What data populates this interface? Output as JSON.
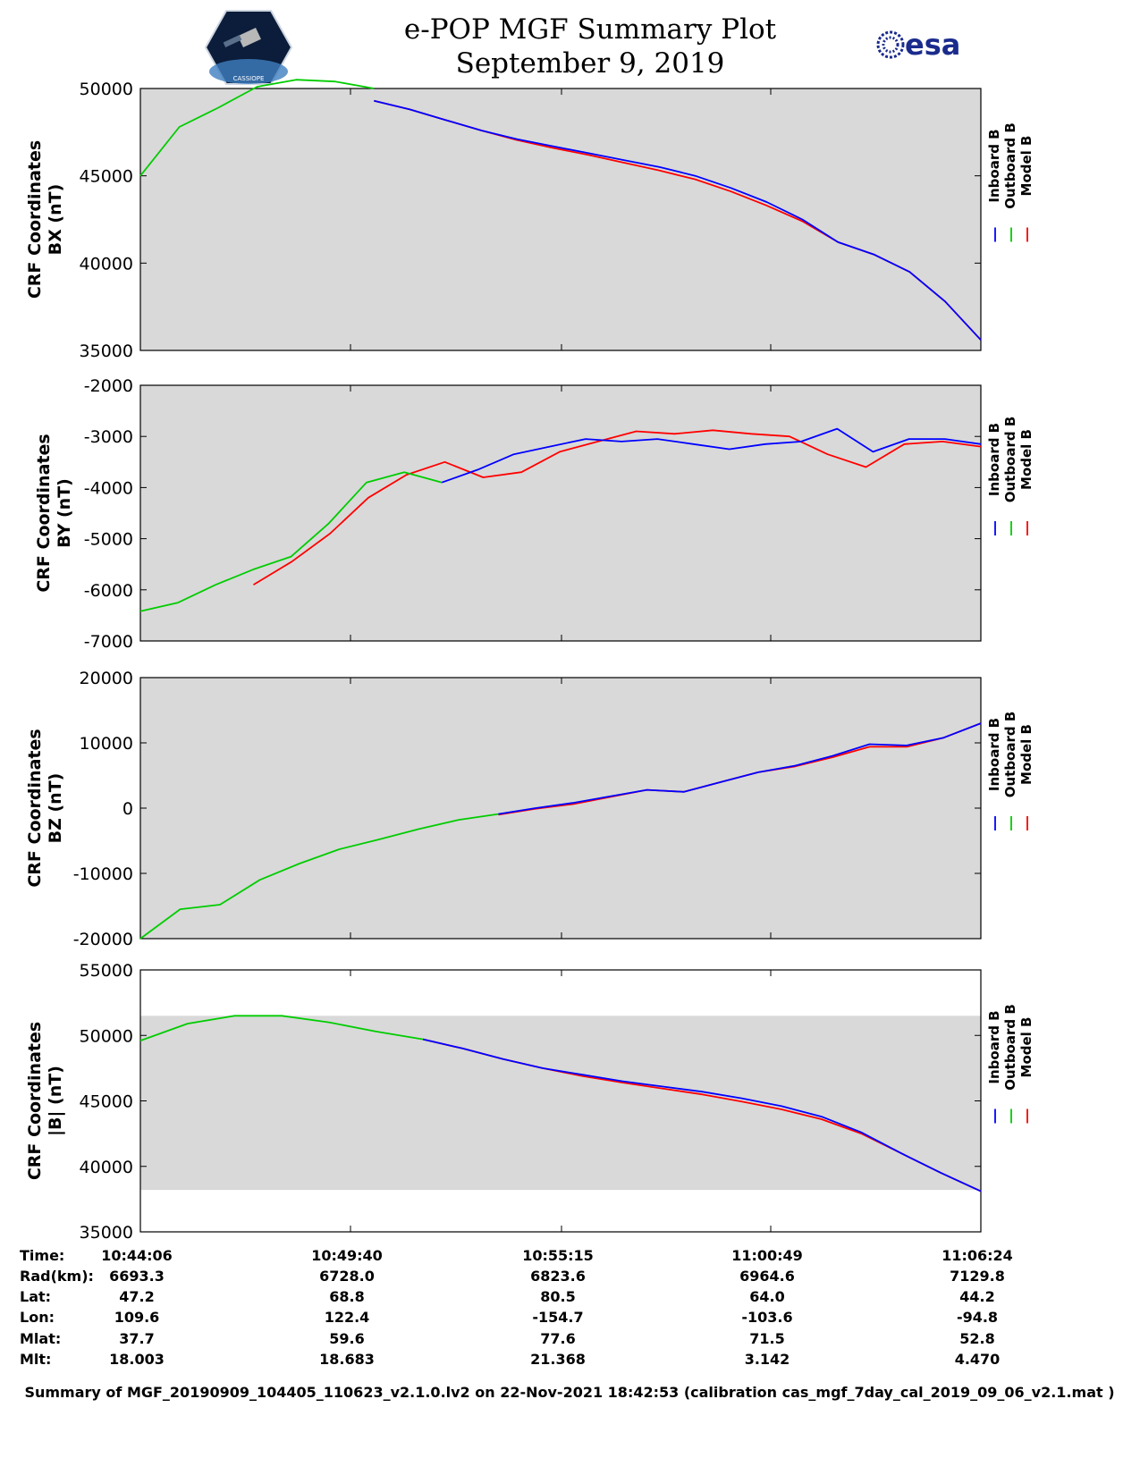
{
  "header": {
    "title": "e-POP MGF Summary Plot",
    "date": "September 9, 2019",
    "esa_logo_text": "esa",
    "cassiope_logo_text": "CASSIOPE"
  },
  "colors": {
    "inboard": "#0000ff",
    "outboard": "#00cc00",
    "model": "#ff0000",
    "panel_bg": "#d9d9d9"
  },
  "legend": [
    "Inboard B",
    "Outboard B",
    "Model B"
  ],
  "chart_data": [
    {
      "type": "line",
      "ylabel_line1": "CRF Coordinates",
      "ylabel_line2": "BX (nT)",
      "ylim": [
        35000,
        50000
      ],
      "yticks": [
        "50000",
        "45000",
        "40000",
        "35000"
      ],
      "yticks_values": [
        50000,
        45000,
        40000,
        35000
      ],
      "shaded_range": [
        35000,
        50500
      ],
      "x_minutes": [
        0,
        1,
        2,
        3,
        4,
        5,
        6,
        7,
        8,
        9,
        10,
        11,
        12,
        13,
        14,
        15,
        16,
        17,
        18,
        19,
        20,
        21,
        22
      ],
      "series": [
        {
          "name": "Outboard B",
          "x_range": [
            0,
            6.2
          ],
          "values": [
            45000,
            47800,
            48900,
            50100,
            50500,
            50400,
            50000
          ]
        },
        {
          "name": "Inboard B",
          "x_range": [
            6.2,
            22.3
          ],
          "values": [
            49300,
            48800,
            48200,
            47600,
            47100,
            46700,
            46300,
            45900,
            45500,
            45000,
            44300,
            43500,
            42500,
            41200,
            40500,
            39500,
            37800,
            35600
          ]
        },
        {
          "name": "Model B",
          "x_range": [
            6.2,
            22.3
          ],
          "values": [
            49300,
            48800,
            48200,
            47600,
            47050,
            46600,
            46200,
            45750,
            45300,
            44800,
            44100,
            43300,
            42400,
            41200,
            40500,
            39500,
            37800,
            35600
          ]
        }
      ]
    },
    {
      "type": "line",
      "ylabel_line1": "CRF Coordinates",
      "ylabel_line2": "BY (nT)",
      "ylim": [
        -7000,
        -2000
      ],
      "yticks": [
        "-2000",
        "-3000",
        "-4000",
        "-5000",
        "-6000",
        "-7000"
      ],
      "yticks_values": [
        -2000,
        -3000,
        -4000,
        -5000,
        -6000,
        -7000
      ],
      "shaded_range": [
        -7000,
        -2000
      ],
      "series": [
        {
          "name": "Outboard B",
          "x_range": [
            0,
            8.0
          ],
          "values": [
            -6420,
            -6250,
            -5900,
            -5600,
            -5350,
            -4700,
            -3900,
            -3700,
            -3900
          ]
        },
        {
          "name": "Inboard B",
          "x_range": [
            8.0,
            22.3
          ],
          "values": [
            -3900,
            -3650,
            -3350,
            -3200,
            -3050,
            -3100,
            -3050,
            -3150,
            -3250,
            -3150,
            -3100,
            -2850,
            -3300,
            -3050,
            -3050,
            -3150
          ]
        },
        {
          "name": "Model B",
          "x_range": [
            3.0,
            22.3
          ],
          "values": [
            -5900,
            -5450,
            -4900,
            -4200,
            -3750,
            -3500,
            -3800,
            -3700,
            -3300,
            -3100,
            -2900,
            -2950,
            -2880,
            -2950,
            -3000,
            -3350,
            -3600,
            -3150,
            -3100,
            -3200
          ]
        }
      ]
    },
    {
      "type": "line",
      "ylabel_line1": "CRF Coordinates",
      "ylabel_line2": "BZ (nT)",
      "ylim": [
        -20000,
        20000
      ],
      "yticks": [
        "20000",
        "10000",
        "0",
        "-10000",
        "-20000"
      ],
      "yticks_values": [
        20000,
        10000,
        0,
        -10000,
        -20000
      ],
      "shaded_range": [
        -20000,
        20000
      ],
      "series": [
        {
          "name": "Outboard B",
          "x_range": [
            0,
            9.5
          ],
          "values": [
            -20000,
            -15500,
            -14800,
            -11000,
            -8500,
            -6300,
            -4800,
            -3200,
            -1800,
            -900
          ]
        },
        {
          "name": "Inboard B",
          "x_range": [
            9.5,
            22.3
          ],
          "values": [
            -900,
            0,
            800,
            1800,
            2800,
            2500,
            4000,
            5500,
            6500,
            8000,
            9800,
            9600,
            10800,
            13000
          ]
        },
        {
          "name": "Model B",
          "x_range": [
            9.5,
            22.3
          ],
          "values": [
            -1000,
            -100,
            600,
            1700,
            2800,
            2500,
            4000,
            5500,
            6400,
            7800,
            9400,
            9400,
            10800,
            13000
          ]
        }
      ]
    },
    {
      "type": "line",
      "ylabel_line1": "CRF Coordinates",
      "ylabel_line2": "|B| (nT)",
      "ylim": [
        35000,
        55000
      ],
      "yticks": [
        "55000",
        "50000",
        "45000",
        "40000",
        "35000"
      ],
      "yticks_values": [
        55000,
        50000,
        45000,
        40000,
        35000
      ],
      "shaded_range": [
        38200,
        51500
      ],
      "series": [
        {
          "name": "Outboard B",
          "x_range": [
            0,
            7.5
          ],
          "values": [
            49600,
            50900,
            51500,
            51500,
            51000,
            50300,
            49700
          ]
        },
        {
          "name": "Inboard B",
          "x_range": [
            7.5,
            22.3
          ],
          "values": [
            49700,
            49000,
            48200,
            47500,
            47000,
            46500,
            46100,
            45700,
            45200,
            44600,
            43800,
            42600,
            41000,
            39500,
            38100
          ]
        },
        {
          "name": "Model B",
          "x_range": [
            7.5,
            22.3
          ],
          "values": [
            49700,
            49000,
            48200,
            47500,
            46900,
            46400,
            45950,
            45500,
            44950,
            44350,
            43600,
            42500,
            41000,
            39500,
            38100
          ]
        }
      ]
    }
  ],
  "info_table": {
    "row_labels": [
      "Time:",
      "Rad(km):",
      "Lat:",
      "Lon:",
      "Mlat:",
      "Mlt:"
    ],
    "columns": [
      [
        "10:44:06",
        "6693.3",
        "47.2",
        "109.6",
        "37.7",
        "18.003"
      ],
      [
        "10:49:40",
        "6728.0",
        "68.8",
        "122.4",
        "59.6",
        "18.683"
      ],
      [
        "10:55:15",
        "6823.6",
        "80.5",
        "-154.7",
        "77.6",
        "21.368"
      ],
      [
        "11:00:49",
        "6964.6",
        "64.0",
        "-103.6",
        "71.5",
        "3.142"
      ],
      [
        "11:06:24",
        "7129.8",
        "44.2",
        "-94.8",
        "52.8",
        "4.470"
      ]
    ]
  },
  "footer": "Summary of MGF_20190909_104405_110623_v2.1.0.lv2 on 22-Nov-2021 18:42:53 (calibration cas_mgf_7day_cal_2019_09_06_v2.1.mat )"
}
